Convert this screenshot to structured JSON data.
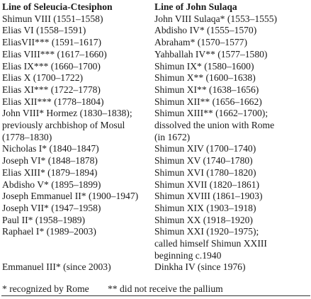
{
  "columns": [
    {
      "heading": "Line of Seleucia-Ctesiphon",
      "lines": [
        "Shimun VIII (1551–1558)",
        "Elias VI (1558–1591)",
        "EliasVII*** (1591–1617)",
        "Elias VIII*** (1617–1660)",
        "Elias IX*** (1660–1700)",
        "Elias X (1700–1722)",
        "Elias XI*** (1722–1778)",
        "Elias XII*** (1778–1804)",
        "John VIII* Hormez (1830–1838);",
        "previously archbishop of Mosul",
        "(1778–1830)",
        "Nicholas I* (1840–1847)",
        "Joseph VI* (1848–1878)",
        "Elias XIII* (1879–1894)",
        "Abdisho V* (1895–1899)",
        "Joseph Emmanuel II* (1900–1947)",
        "Joseph VII* (1947–1958)",
        "Paul II* (1958–1989)",
        "Raphael I* (1989–2003)"
      ],
      "final": "Emmanuel III* (since 2003)"
    },
    {
      "heading": "Line of John Sulaqa",
      "lines": [
        "John VIII Sulaqa* (1553–1555)",
        "Abdisho IV* (1555–1570)",
        "Abraham* (1570–1577)",
        "Yahballah IV** (1577–1580)",
        "Shimun IX* (1580–1600)",
        "Shimun X** (1600–1638)",
        "Shimun XI** (1638–1656)",
        "Shimun XII** (1656–1662)",
        "Shimun XIII** (1662–1700);",
        "dissolved the union with Rome",
        "(in 1672)",
        "Shimun XIV (1700–1740)",
        "Shimun XV (1740–1780)",
        "Shimun XVI (1780–1820)",
        "Shimun XVII (1820–1861)",
        "Shimun XVIII (1861–1903)",
        "Shimun XIX (1903–1918)",
        "Shimun XX (1918–1920)",
        "Shimun XXI (1920–1975);",
        "called himself Shimun XXIII",
        "beginning c.1940"
      ],
      "final": "Dinkha IV (since 1976)"
    }
  ],
  "footnotes": [
    "* recognized by Rome",
    "** did not receive the pallium"
  ]
}
